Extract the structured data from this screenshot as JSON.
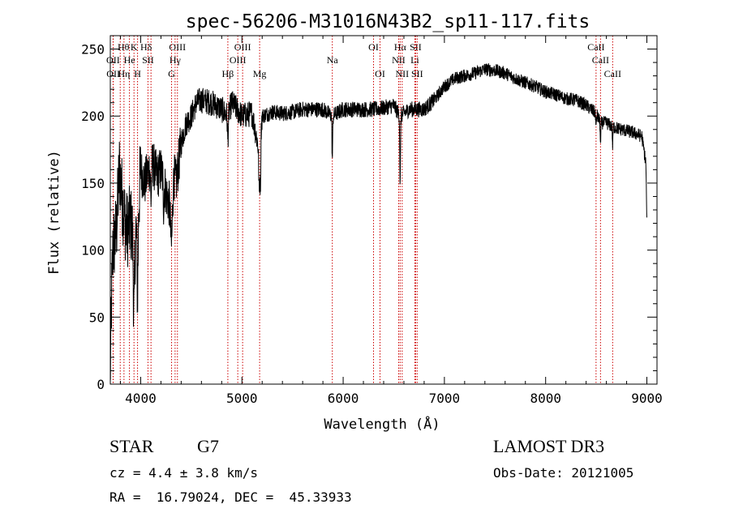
{
  "chart_data": {
    "type": "line",
    "title": "spec-56206-M31016N43B2_sp11-117.fits",
    "xlabel": "Wavelength (Å)",
    "ylabel": "Flux (relative)",
    "xlim": [
      3700,
      9100
    ],
    "ylim": [
      0,
      260
    ],
    "x_ticks": [
      4000,
      5000,
      6000,
      7000,
      8000,
      9000
    ],
    "y_ticks": [
      0,
      50,
      100,
      150,
      200,
      250
    ],
    "spectrum_anchors": [
      [
        3700,
        5
      ],
      [
        3710,
        55
      ],
      [
        3725,
        100
      ],
      [
        3760,
        115
      ],
      [
        3790,
        160
      ],
      [
        3830,
        130
      ],
      [
        3860,
        115
      ],
      [
        3900,
        120
      ],
      [
        3930,
        110
      ],
      [
        3970,
        120
      ],
      [
        4000,
        160
      ],
      [
        4040,
        150
      ],
      [
        4080,
        160
      ],
      [
        4120,
        165
      ],
      [
        4160,
        155
      ],
      [
        4200,
        160
      ],
      [
        4260,
        140
      ],
      [
        4300,
        130
      ],
      [
        4330,
        155
      ],
      [
        4350,
        150
      ],
      [
        4400,
        180
      ],
      [
        4450,
        195
      ],
      [
        4500,
        200
      ],
      [
        4550,
        210
      ],
      [
        4600,
        212
      ],
      [
        4700,
        210
      ],
      [
        4800,
        205
      ],
      [
        4861,
        200
      ],
      [
        4900,
        210
      ],
      [
        4950,
        205
      ],
      [
        5000,
        200
      ],
      [
        5100,
        202
      ],
      [
        5168,
        175
      ],
      [
        5200,
        200
      ],
      [
        5300,
        203
      ],
      [
        5400,
        202
      ],
      [
        5500,
        203
      ],
      [
        5600,
        205
      ],
      [
        5700,
        205
      ],
      [
        5800,
        205
      ],
      [
        5893,
        200
      ],
      [
        6000,
        205
      ],
      [
        6100,
        205
      ],
      [
        6200,
        205
      ],
      [
        6300,
        205
      ],
      [
        6400,
        206
      ],
      [
        6500,
        208
      ],
      [
        6563,
        200
      ],
      [
        6650,
        205
      ],
      [
        6800,
        205
      ],
      [
        6900,
        212
      ],
      [
        7000,
        222
      ],
      [
        7100,
        228
      ],
      [
        7200,
        230
      ],
      [
        7300,
        232
      ],
      [
        7400,
        235
      ],
      [
        7500,
        234
      ],
      [
        7600,
        232
      ],
      [
        7700,
        228
      ],
      [
        7800,
        225
      ],
      [
        7900,
        222
      ],
      [
        8000,
        218
      ],
      [
        8100,
        216
      ],
      [
        8200,
        213
      ],
      [
        8300,
        212
      ],
      [
        8400,
        208
      ],
      [
        8498,
        202
      ],
      [
        8542,
        195
      ],
      [
        8600,
        195
      ],
      [
        8662,
        192
      ],
      [
        8750,
        190
      ],
      [
        8850,
        188
      ],
      [
        8950,
        185
      ],
      [
        8990,
        165
      ],
      [
        9000,
        120
      ]
    ],
    "absorption_features": [
      [
        3934,
        60,
        18
      ],
      [
        3969,
        50,
        16
      ],
      [
        4102,
        25,
        14
      ],
      [
        4227,
        18,
        10
      ],
      [
        4305,
        30,
        22
      ],
      [
        4861,
        18,
        12
      ],
      [
        5172,
        35,
        14
      ],
      [
        5183,
        35,
        10
      ],
      [
        5893,
        32,
        10
      ],
      [
        6563,
        50,
        10
      ],
      [
        8498,
        12,
        8
      ],
      [
        8542,
        18,
        8
      ],
      [
        8662,
        15,
        8
      ]
    ],
    "line_markers": [
      {
        "label": "Hδ",
        "wave": 4102,
        "row": 0,
        "dx": -6
      },
      {
        "label": "K",
        "wave": 3934,
        "row": 0,
        "dx": 0
      },
      {
        "label": "Hθ",
        "wave": 3798,
        "row": 0,
        "dx": 4
      },
      {
        "label": "Hγ",
        "wave": 4340,
        "row": 1,
        "dx": 0
      },
      {
        "label": "OIII",
        "wave": 4363,
        "row": 0,
        "dx": 0
      },
      {
        "label": "OIII",
        "wave": 4959,
        "row": 1,
        "dx": 0
      },
      {
        "label": "OIII",
        "wave": 5007,
        "row": 0,
        "dx": 0
      },
      {
        "label": "Hβ",
        "wave": 4861,
        "row": 2,
        "dx": 0
      },
      {
        "label": "Mg",
        "wave": 5175,
        "row": 2,
        "dx": 0
      },
      {
        "label": "Na",
        "wave": 5893,
        "row": 1,
        "dx": 0
      },
      {
        "label": "OI",
        "wave": 6300,
        "row": 0,
        "dx": 0
      },
      {
        "label": "OI",
        "wave": 6364,
        "row": 2,
        "dx": 0
      },
      {
        "label": "Hα",
        "wave": 6563,
        "row": 0,
        "dx": 0
      },
      {
        "label": "NII",
        "wave": 6548,
        "row": 1,
        "dx": 0
      },
      {
        "label": "NII",
        "wave": 6583,
        "row": 2,
        "dx": 0
      },
      {
        "label": "SII",
        "wave": 6716,
        "row": 0,
        "dx": 0
      },
      {
        "label": "SII",
        "wave": 6731,
        "row": 2,
        "dx": 0
      },
      {
        "label": "Li",
        "wave": 6708,
        "row": 1,
        "dx": 0
      },
      {
        "label": "CaII",
        "wave": 8498,
        "row": 0,
        "dx": 0
      },
      {
        "label": "CaII",
        "wave": 8542,
        "row": 1,
        "dx": 0
      },
      {
        "label": "CaII",
        "wave": 8662,
        "row": 2,
        "dx": 0
      },
      {
        "label": "OII",
        "wave": 3727,
        "row": 1,
        "dx": 0
      },
      {
        "label": "He",
        "wave": 3889,
        "row": 1,
        "dx": 0
      },
      {
        "label": "SII",
        "wave": 4072,
        "row": 1,
        "dx": 0
      },
      {
        "label": "OII",
        "wave": 3729,
        "row": 2,
        "dx": 0
      },
      {
        "label": "Hη",
        "wave": 3835,
        "row": 2,
        "dx": 0
      },
      {
        "label": "H",
        "wave": 3969,
        "row": 2,
        "dx": 0
      },
      {
        "label": "G",
        "wave": 4305,
        "row": 2,
        "dx": 0
      }
    ],
    "marker_line_color": "#cc0000",
    "spectrum_color": "#000000"
  },
  "info": {
    "class": "STAR",
    "subclass": "G7",
    "survey": "LAMOST DR3",
    "cz": "cz = 4.4 ± 3.8 km/s",
    "obs_date": "Obs-Date: 20121005",
    "coords": "RA =  16.79024, DEC =  45.33933"
  }
}
